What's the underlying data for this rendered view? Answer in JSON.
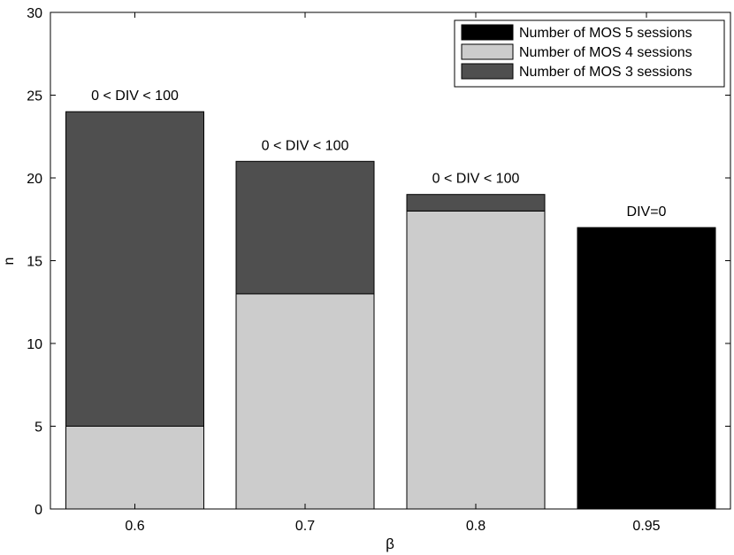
{
  "chart_data": {
    "type": "bar",
    "stacked": true,
    "title": "",
    "xlabel": "β",
    "ylabel": "n",
    "ylim": [
      0,
      30
    ],
    "yticks": [
      0,
      5,
      10,
      15,
      20,
      25,
      30
    ],
    "categories": [
      "0.6",
      "0.7",
      "0.8",
      "0.95"
    ],
    "series": [
      {
        "name": "Number of MOS 5 sessions",
        "color": "#000000",
        "values": [
          0,
          0,
          0,
          17
        ]
      },
      {
        "name": "Number of MOS 4 sessions",
        "color": "#cccccc",
        "values": [
          5,
          13,
          18,
          0
        ]
      },
      {
        "name": "Number of MOS 3 sessions",
        "color": "#4f4f4f",
        "values": [
          19,
          8,
          1,
          0
        ]
      }
    ],
    "annotations": [
      "0 < DIV < 100",
      "0 < DIV < 100",
      "0 < DIV < 100",
      "DIV=0"
    ],
    "legend_position": "top-right",
    "grid": false
  }
}
